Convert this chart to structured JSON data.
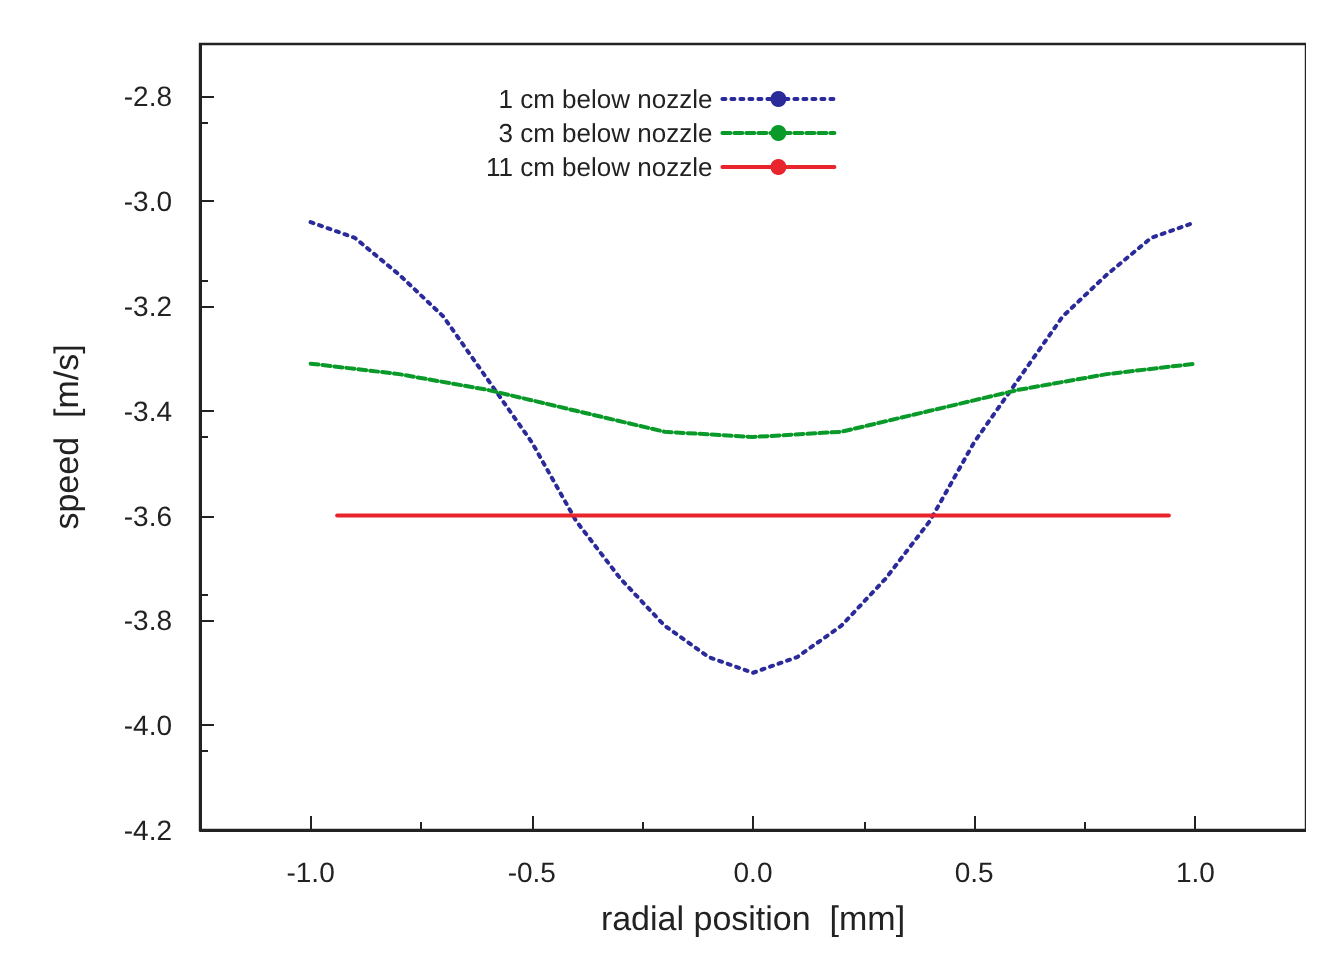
{
  "chart_data": {
    "type": "line",
    "xlabel": "radial position  [mm]",
    "ylabel": "speed  [m/s]",
    "xlim": [
      -1.25,
      1.25
    ],
    "ylim": [
      -4.2,
      -2.7
    ],
    "xticks": [
      {
        "value": -1,
        "label": "-1.0"
      },
      {
        "value": -0.5,
        "label": "-0.5"
      },
      {
        "value": 0,
        "label": "0.0"
      },
      {
        "value": 0.5,
        "label": "0.5"
      },
      {
        "value": 1,
        "label": "1.0"
      }
    ],
    "yticks": [
      {
        "value": -4.2,
        "label": "-4.2"
      },
      {
        "value": -4,
        "label": "-4.0"
      },
      {
        "value": -3.8,
        "label": "-3.8"
      },
      {
        "value": -3.6,
        "label": "-3.6"
      },
      {
        "value": -3.4,
        "label": "-3.4"
      },
      {
        "value": -3.2,
        "label": "-3.2"
      },
      {
        "value": -3,
        "label": "-3.0"
      },
      {
        "value": -2.8,
        "label": "-2.8"
      }
    ],
    "grid": false,
    "legend": "top",
    "marker": "none",
    "series": [
      {
        "name": "1 cm below nozzle",
        "color": "#2a2a9a",
        "line_style": "dotted",
        "x": [
          -1,
          -0.9,
          -0.8,
          -0.7,
          -0.6,
          -0.5,
          -0.4,
          -0.3,
          -0.2,
          -0.1,
          0,
          0.1,
          0.2,
          0.3,
          0.4,
          0.5,
          0.6,
          0.7,
          0.8,
          0.9,
          1
        ],
        "values": [
          -3.04,
          -3.07,
          -3.14,
          -3.22,
          -3.34,
          -3.46,
          -3.61,
          -3.72,
          -3.81,
          -3.87,
          -3.9,
          -3.87,
          -3.81,
          -3.72,
          -3.61,
          -3.46,
          -3.34,
          -3.22,
          -3.14,
          -3.07,
          -3.04
        ]
      },
      {
        "name": "3 cm below nozzle",
        "color": "#0a9a2a",
        "line_style": "dashed",
        "x": [
          -1,
          -0.8,
          -0.6,
          -0.4,
          -0.2,
          0,
          0.2,
          0.4,
          0.6,
          0.8,
          1
        ],
        "values": [
          -3.31,
          -3.33,
          -3.36,
          -3.4,
          -3.44,
          -3.45,
          -3.44,
          -3.4,
          -3.36,
          -3.33,
          -3.31
        ]
      },
      {
        "name": "11 cm below nozzle",
        "color": "#e8242c",
        "line_style": "solid",
        "x": [
          -0.94,
          0.94
        ],
        "values": [
          -3.6,
          -3.6
        ]
      }
    ]
  }
}
